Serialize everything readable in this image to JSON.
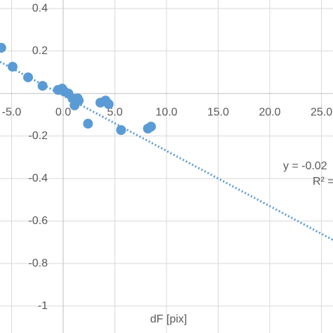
{
  "chart_data": {
    "type": "scatter",
    "x_label": "dF [pix]",
    "x": [
      -6.0,
      -4.9,
      -3.4,
      -2.0,
      -0.5,
      -0.1,
      0.1,
      0.5,
      0.9,
      1.2,
      1.4,
      1.1,
      1.5,
      2.4,
      3.6,
      4.1,
      4.4,
      5.6,
      8.2,
      8.5
    ],
    "values": [
      0.215,
      0.126,
      0.076,
      0.036,
      0.017,
      0.023,
      0.01,
      0.0,
      -0.023,
      -0.04,
      -0.023,
      -0.056,
      -0.033,
      -0.142,
      -0.043,
      -0.033,
      -0.05,
      -0.172,
      -0.165,
      -0.156
    ],
    "color": "#5b9bd5",
    "xlim": [
      -6.12,
      26.12
    ],
    "ylim": [
      -1.127,
      0.44
    ],
    "xticks": [
      {
        "value": -5,
        "label": "-5.0"
      },
      {
        "value": 0,
        "label": "0.0"
      },
      {
        "value": 5,
        "label": "5.0"
      },
      {
        "value": 10,
        "label": "10.0"
      },
      {
        "value": 15,
        "label": "15.0"
      },
      {
        "value": 20,
        "label": "20.0"
      },
      {
        "value": 25,
        "label": "25.0"
      }
    ],
    "yticks": [
      0.4,
      0.2,
      -0.2,
      -0.4,
      -0.6,
      -0.8,
      -1
    ],
    "grid": true,
    "trendline": {
      "slope": -0.026,
      "intercept": -0.01,
      "color": "#5b9bd5",
      "equation": "y = -0.02",
      "r2": "R² ="
    }
  }
}
